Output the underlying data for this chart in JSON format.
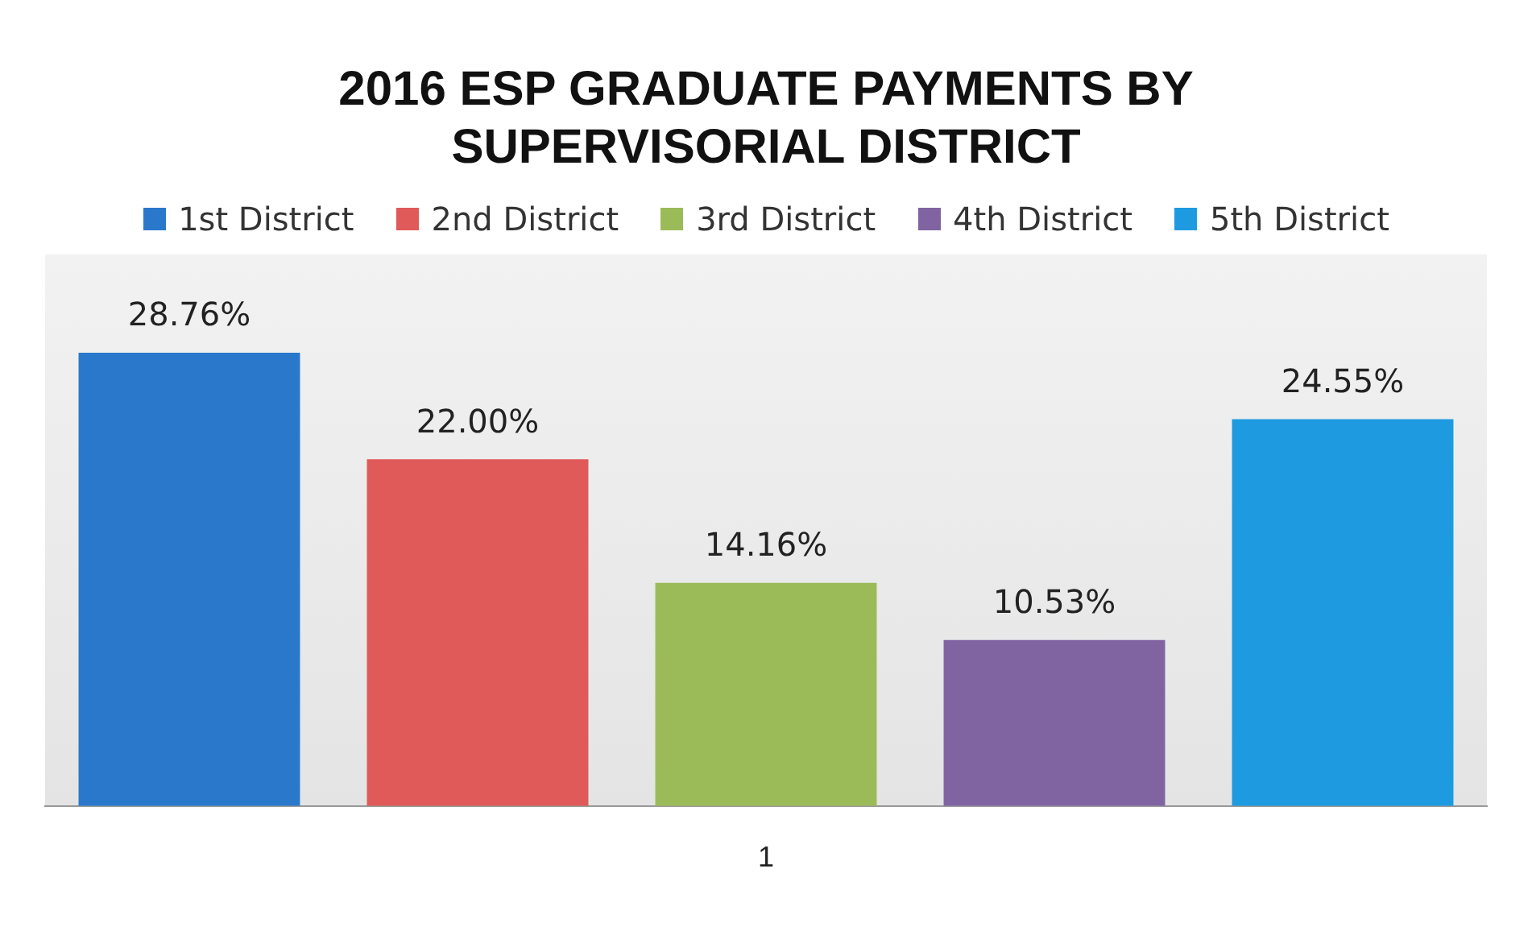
{
  "chart_data": {
    "type": "bar",
    "title": "2016 ESP GRADUATE PAYMENTS BY SUPERVISORIAL DISTRICT",
    "xlabel": "1",
    "categories": [
      "1st District",
      "2nd District",
      "3rd District",
      "4th District",
      "5th District"
    ],
    "tick_labels": false,
    "grid": false,
    "values": [
      28.76,
      22.0,
      14.16,
      10.53,
      24.55
    ],
    "colors": [
      "#2a78cc",
      "#e05a5a",
      "#9bbb59",
      "#8064a2",
      "#1e9be0"
    ],
    "value_labels": [
      "28.76%",
      "22.00%",
      "14.16%",
      "10.53%",
      "24.55%"
    ]
  }
}
